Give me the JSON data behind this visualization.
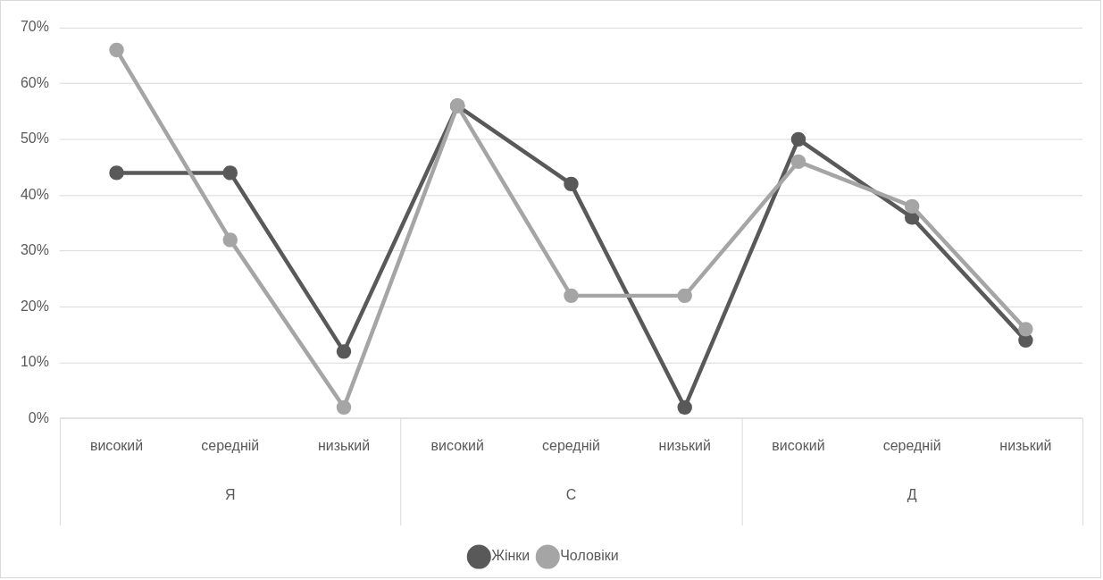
{
  "chart_data": {
    "type": "line",
    "categories": [
      "високий",
      "середній",
      "низький",
      "високий",
      "середній",
      "низький",
      "високий",
      "середній",
      "низький"
    ],
    "annotations": [
      "Я",
      "С",
      "Д"
    ],
    "series": [
      {
        "name": "Жінки",
        "color": "#595959",
        "values": [
          44,
          44,
          12,
          56,
          42,
          2,
          50,
          36,
          14
        ]
      },
      {
        "name": "Чоловіки",
        "color": "#a5a5a5",
        "values": [
          66,
          32,
          2,
          56,
          22,
          22,
          46,
          38,
          16
        ]
      }
    ],
    "ylim": [
      0,
      70
    ],
    "yticks": [
      {
        "value": 0,
        "label": "0%"
      },
      {
        "value": 10,
        "label": "10%"
      },
      {
        "value": 20,
        "label": "20%"
      },
      {
        "value": 30,
        "label": "30%"
      },
      {
        "value": 40,
        "label": "40%"
      },
      {
        "value": 50,
        "label": "50%"
      },
      {
        "value": 60,
        "label": "60%"
      },
      {
        "value": 70,
        "label": "70%"
      }
    ],
    "grid": "y",
    "legend": "bottom",
    "marker": "circle",
    "line_style": "solid"
  }
}
